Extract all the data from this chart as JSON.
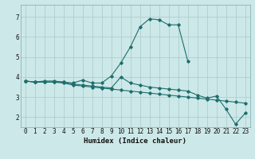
{
  "xlabel": "Humidex (Indice chaleur)",
  "background_color": "#cde8e8",
  "grid_color": "#aecece",
  "line_color": "#1e6e6e",
  "xlim": [
    -0.5,
    23.5
  ],
  "ylim": [
    1.5,
    7.6
  ],
  "xticks": [
    0,
    1,
    2,
    3,
    4,
    5,
    6,
    7,
    8,
    9,
    10,
    11,
    12,
    13,
    14,
    15,
    16,
    17,
    18,
    19,
    20,
    21,
    22,
    23
  ],
  "yticks": [
    2,
    3,
    4,
    5,
    6,
    7
  ],
  "series": [
    [
      3.8,
      3.75,
      3.8,
      3.8,
      3.75,
      3.7,
      3.85,
      3.7,
      3.7,
      4.05,
      4.7,
      5.5,
      6.5,
      6.9,
      6.85,
      6.6,
      6.6,
      4.8,
      null,
      null,
      null,
      null,
      null,
      null
    ],
    [
      3.8,
      3.75,
      3.75,
      3.75,
      3.7,
      3.6,
      3.55,
      3.5,
      3.45,
      3.4,
      3.35,
      3.3,
      3.25,
      3.2,
      3.15,
      3.1,
      3.05,
      3.0,
      2.95,
      2.9,
      2.85,
      2.8,
      2.75,
      2.7
    ],
    [
      3.8,
      3.75,
      3.75,
      3.75,
      3.75,
      3.65,
      3.6,
      3.55,
      3.5,
      3.45,
      4.0,
      3.7,
      3.6,
      3.5,
      3.45,
      3.4,
      3.35,
      3.3,
      3.1,
      2.95,
      3.05,
      2.4,
      1.65,
      2.2
    ]
  ]
}
